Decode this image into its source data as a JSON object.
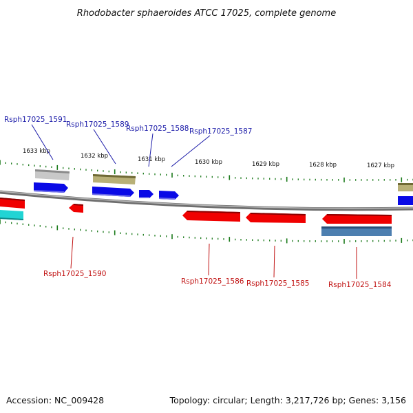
{
  "title": "Rhodobacter sphaeroides ATCC 17025, complete genome",
  "footer": {
    "accession": "Accession: NC_009428",
    "summary": "Topology: circular; Length: 3,217,726 bp; Genes: 3,156"
  },
  "colors": {
    "backbone": "#8a8a8a",
    "tick": "#1a7a1a",
    "label_top": "#1a1aa8",
    "label_bottom": "#c01010",
    "gene_blue": "#0a0ae6",
    "gene_red": "#f00000",
    "gene_gray": "#c0c0c0",
    "gene_olive": "#b5ae6c",
    "gene_cyan": "#20d4d4",
    "gene_steel": "#4d7fb0"
  },
  "scale": {
    "ticks": [
      "1633 kbp",
      "1632 kbp",
      "1631 kbp",
      "1630 kbp",
      "1629 kbp",
      "1628 kbp",
      "1627 kbp"
    ]
  },
  "genes": {
    "top": [
      "Rsph17025_1591",
      "Rsph17025_1589",
      "Rsph17025_1588",
      "Rsph17025_1587"
    ],
    "bottom": [
      "Rsph17025_1590",
      "Rsph17025_1586",
      "Rsph17025_1585",
      "Rsph17025_1584"
    ]
  }
}
